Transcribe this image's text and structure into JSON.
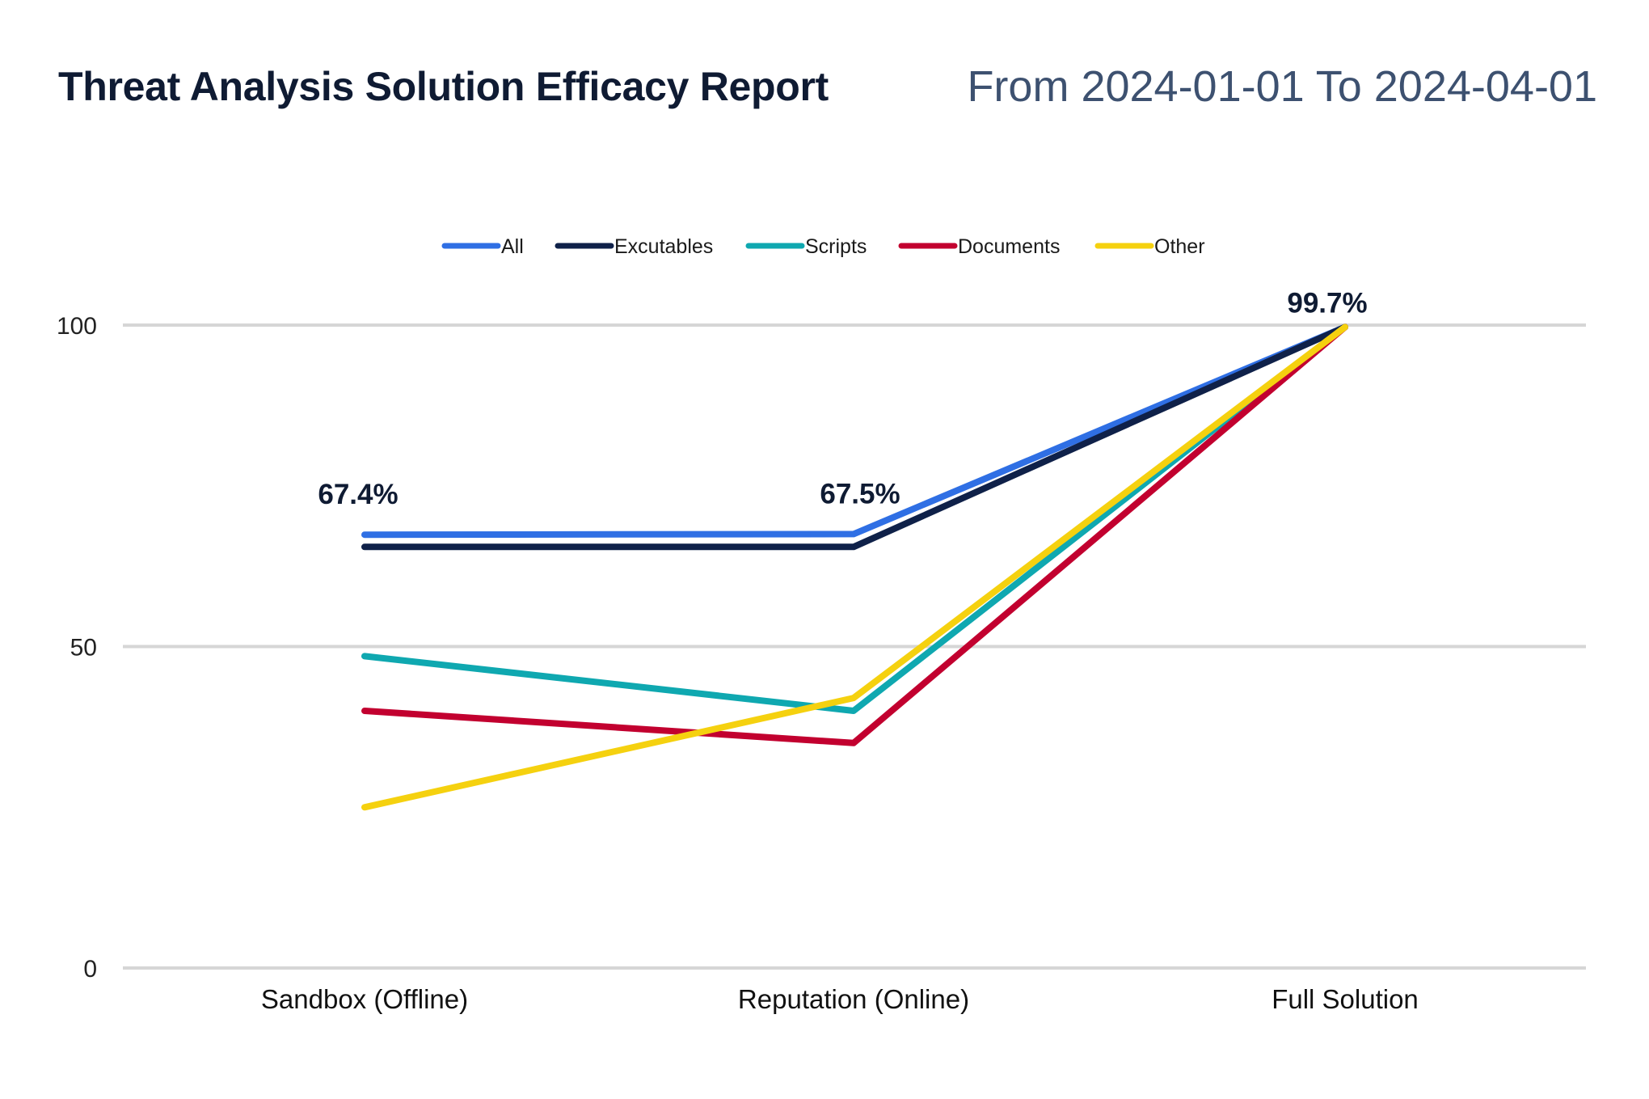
{
  "header": {
    "title": "Threat Analysis Solution Efficacy Report",
    "date_from_label": "From",
    "date_from": "2024-01-01",
    "date_to_label": "To",
    "date_to": "2024-04-01"
  },
  "chart_data": {
    "type": "line",
    "title": "Threat Analysis Solution Efficacy Report",
    "xlabel": "",
    "ylabel": "",
    "categories": [
      "Sandbox (Offline)",
      "Reputation (Online)",
      "Full Solution"
    ],
    "ylim": [
      0,
      100
    ],
    "yticks": [
      0,
      50,
      100
    ],
    "grid": true,
    "legend_position": "top-center",
    "series": [
      {
        "name": "All",
        "color": "#2f6fe4",
        "values": [
          67.4,
          67.5,
          99.7
        ]
      },
      {
        "name": "Excutables",
        "color": "#0f2149",
        "values": [
          65.5,
          65.5,
          99.7
        ]
      },
      {
        "name": "Scripts",
        "color": "#0fa8b0",
        "values": [
          48.5,
          40,
          99.7
        ]
      },
      {
        "name": "Documents",
        "color": "#c2002f",
        "values": [
          40,
          35,
          99.7
        ]
      },
      {
        "name": "Other",
        "color": "#f5d10f",
        "values": [
          25,
          42,
          99.7
        ]
      }
    ],
    "data_labels": [
      {
        "series": 0,
        "index": 0,
        "text": "67.4%"
      },
      {
        "series": 0,
        "index": 1,
        "text": "67.5%"
      },
      {
        "series": 0,
        "index": 2,
        "text": "99.7%"
      }
    ]
  }
}
